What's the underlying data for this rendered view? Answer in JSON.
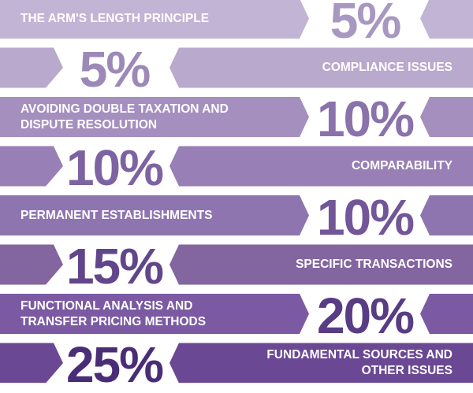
{
  "chart_data": {
    "type": "table",
    "title": "",
    "rows": [
      {
        "label": "THE ARM'S LENGTH PRINCIPLE",
        "value_label": "5%",
        "value": 5,
        "color": "#c2b4d4",
        "value_color": "#a897c0"
      },
      {
        "label": "COMPLIANCE ISSUES",
        "value_label": "5%",
        "value": 5,
        "color": "#b9a9cd",
        "value_color": "#9d89b7"
      },
      {
        "label": "AVOIDING DOUBLE TAXATION AND\nDISPUTE RESOLUTION",
        "value_label": "10%",
        "value": 10,
        "color": "#a48fbf",
        "value_color": "#8a72ab"
      },
      {
        "label": "COMPARABILITY",
        "value_label": "10%",
        "value": 10,
        "color": "#987fb6",
        "value_color": "#7d63a2"
      },
      {
        "label": "PERMANENT ESTABLISHMENTS",
        "value_label": "10%",
        "value": 10,
        "color": "#8f75b0",
        "value_color": "#725698"
      },
      {
        "label": "SPECIFIC TRANSACTIONS",
        "value_label": "15%",
        "value": 15,
        "color": "#83659f",
        "value_color": "#62468b"
      },
      {
        "label": "FUNCTIONAL ANALYSIS AND\nTRANSFER PRICING METHODS",
        "value_label": "20%",
        "value": 20,
        "color": "#7b5aa3",
        "value_color": "#583c84"
      },
      {
        "label": "FUNDAMENTAL SOURCES AND\nOTHER ISSUES",
        "value_label": "25%",
        "value": 25,
        "color": "#6b4894",
        "value_color": "#4a2d77"
      }
    ]
  }
}
